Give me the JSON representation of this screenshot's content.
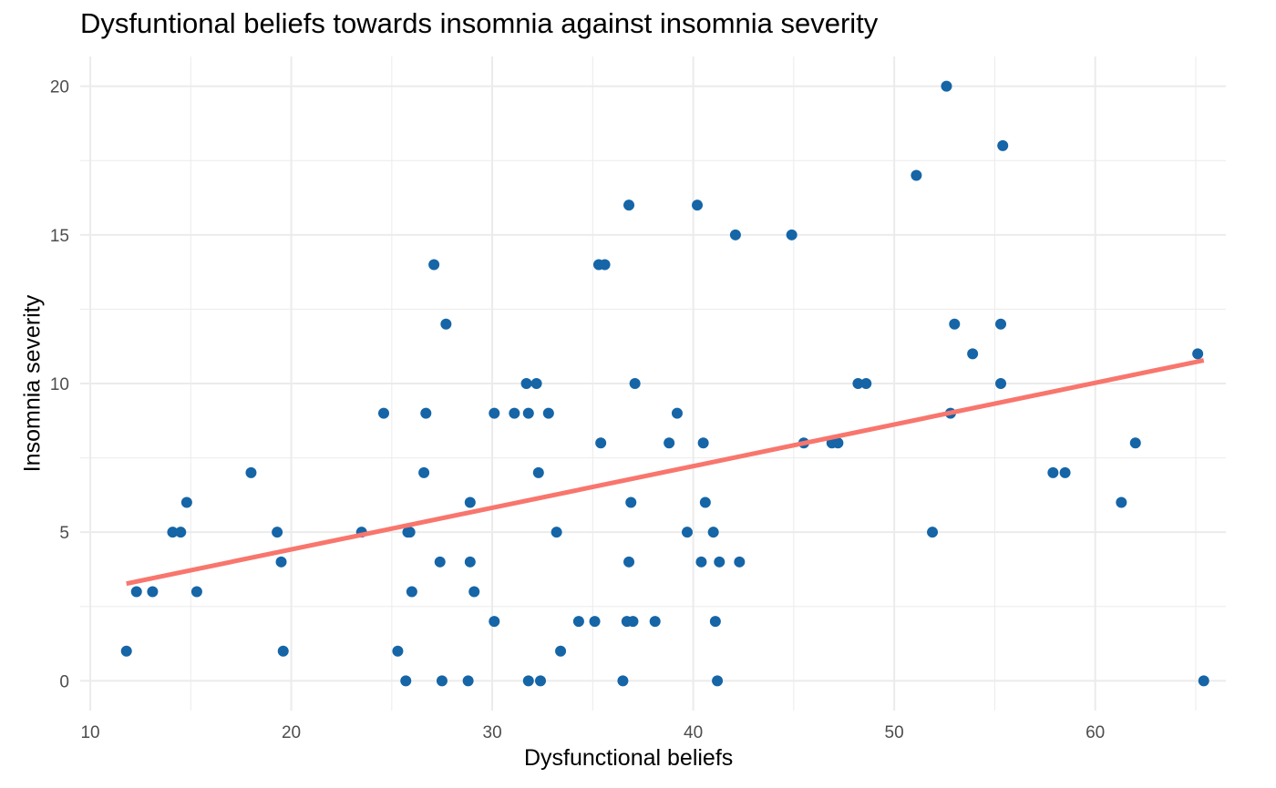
{
  "chart_data": {
    "type": "scatter",
    "title": "Dysfuntional beliefs towards insomnia against insomnia severity",
    "xlabel": "Dysfunctional beliefs",
    "ylabel": "Insomnia severity",
    "xlim": [
      9.5,
      66.5
    ],
    "ylim": [
      -1,
      21
    ],
    "x_ticks": [
      10,
      20,
      30,
      40,
      50,
      60
    ],
    "y_ticks": [
      0,
      5,
      10,
      15,
      20
    ],
    "grid": true,
    "colors": {
      "points": "#1565a7",
      "trend": "#f8766d",
      "grid": "#ebebeb",
      "tick_text": "#4d4d4d"
    },
    "series": [
      {
        "points": [
          [
            11.8,
            1
          ],
          [
            12.3,
            3
          ],
          [
            13.1,
            3
          ],
          [
            14.1,
            5
          ],
          [
            14.5,
            5
          ],
          [
            14.8,
            6
          ],
          [
            15.3,
            3
          ],
          [
            18.0,
            7
          ],
          [
            19.3,
            5
          ],
          [
            19.5,
            4
          ],
          [
            19.6,
            1
          ],
          [
            23.5,
            5
          ],
          [
            24.6,
            9
          ],
          [
            25.3,
            1
          ],
          [
            25.7,
            0
          ],
          [
            25.8,
            5
          ],
          [
            25.9,
            5
          ],
          [
            26.0,
            3
          ],
          [
            26.6,
            7
          ],
          [
            26.7,
            9
          ],
          [
            27.1,
            14
          ],
          [
            27.4,
            4
          ],
          [
            27.5,
            0
          ],
          [
            27.7,
            12
          ],
          [
            28.8,
            0
          ],
          [
            28.9,
            6
          ],
          [
            28.9,
            4
          ],
          [
            29.1,
            3
          ],
          [
            30.1,
            9
          ],
          [
            30.1,
            2
          ],
          [
            31.1,
            9
          ],
          [
            31.7,
            10
          ],
          [
            31.8,
            9
          ],
          [
            31.8,
            0
          ],
          [
            32.2,
            10
          ],
          [
            32.3,
            7
          ],
          [
            32.4,
            0
          ],
          [
            32.8,
            9
          ],
          [
            33.2,
            5
          ],
          [
            33.4,
            1
          ],
          [
            34.3,
            2
          ],
          [
            35.1,
            2
          ],
          [
            35.3,
            14
          ],
          [
            35.4,
            8
          ],
          [
            35.6,
            14
          ],
          [
            36.5,
            0
          ],
          [
            36.7,
            2
          ],
          [
            36.8,
            4
          ],
          [
            36.8,
            16
          ],
          [
            36.9,
            6
          ],
          [
            37.0,
            2
          ],
          [
            37.1,
            10
          ],
          [
            38.1,
            2
          ],
          [
            38.8,
            8
          ],
          [
            39.2,
            9
          ],
          [
            39.7,
            5
          ],
          [
            40.2,
            16
          ],
          [
            40.4,
            4
          ],
          [
            40.5,
            8
          ],
          [
            40.6,
            6
          ],
          [
            41.0,
            5
          ],
          [
            41.1,
            2
          ],
          [
            41.2,
            0
          ],
          [
            41.3,
            4
          ],
          [
            42.1,
            15
          ],
          [
            42.3,
            4
          ],
          [
            44.9,
            15
          ],
          [
            45.5,
            8
          ],
          [
            46.9,
            8
          ],
          [
            47.2,
            8
          ],
          [
            48.2,
            10
          ],
          [
            48.6,
            10
          ],
          [
            51.1,
            17
          ],
          [
            51.9,
            5
          ],
          [
            52.6,
            20
          ],
          [
            52.8,
            9
          ],
          [
            53.0,
            12
          ],
          [
            53.9,
            11
          ],
          [
            55.3,
            12
          ],
          [
            55.3,
            10
          ],
          [
            55.4,
            18
          ],
          [
            57.9,
            7
          ],
          [
            58.5,
            7
          ],
          [
            61.3,
            6
          ],
          [
            62.0,
            8
          ],
          [
            65.1,
            11
          ],
          [
            65.4,
            0
          ]
        ]
      }
    ],
    "trend_line": {
      "x": [
        11.8,
        65.4
      ],
      "y": [
        3.27,
        10.78
      ]
    }
  }
}
